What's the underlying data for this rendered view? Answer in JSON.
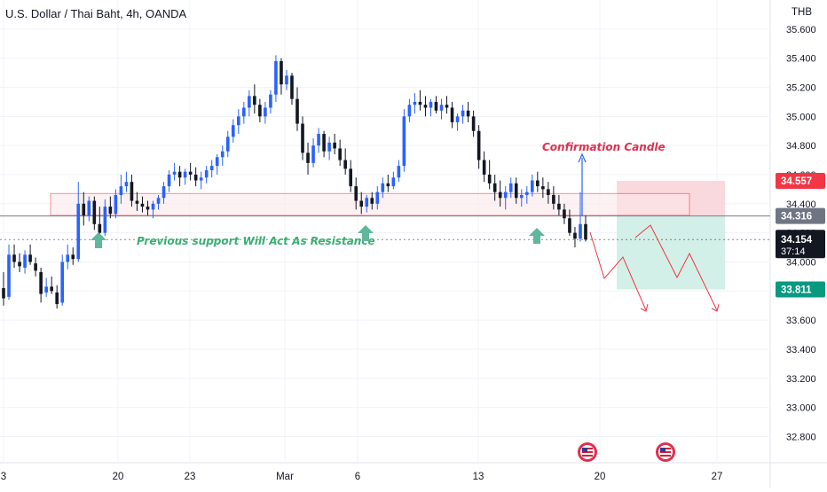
{
  "header": {
    "title": "U.S. Dollar / Thai Baht, 4h, OANDA"
  },
  "colors": {
    "up": "#2962ff",
    "down": "#131722",
    "zone_stroke": "#f23645",
    "zone_fill": "#fde8ea",
    "tp_fill": "#cdeee6",
    "sl_fill": "#f9d2d8",
    "green_arrow": "#5fb89b",
    "red_badge": "#f23645",
    "gray_badge": "#6f7583",
    "dark_badge": "#131722",
    "green_badge": "#089981"
  },
  "icons": [
    "us-flag-event-icon",
    "us-flag-event-icon"
  ],
  "chart_data": {
    "type": "candlestick",
    "title": "U.S. Dollar / Thai Baht, 4h, OANDA",
    "currency_label": "THB",
    "ylim": [
      32.62,
      35.8
    ],
    "y_ticks": [
      "35.600",
      "35.400",
      "35.200",
      "35.000",
      "34.800",
      "34.600",
      "34.400",
      "34.200",
      "34.000",
      "33.800",
      "33.600",
      "33.400",
      "33.200",
      "33.000",
      "32.800"
    ],
    "x_ticks": [
      "3",
      "20",
      "23",
      "Mar",
      "6",
      "13",
      "20",
      "27"
    ],
    "price_badges": {
      "stop_loss": "34.557",
      "entry": "34.316",
      "current": "34.154",
      "countdown": "37:14",
      "take_profit": "33.811"
    },
    "annotations": {
      "support_note": "Previous support Will Act As Resistance",
      "confirmation_note": "Confirmation Candle"
    },
    "zone": {
      "top": 34.47,
      "bottom": 34.32
    },
    "trade": {
      "stop_loss": 34.557,
      "entry": 34.316,
      "take_profit": 33.811
    },
    "candles": [
      [
        33.82,
        33.93,
        33.7,
        33.75
      ],
      [
        33.76,
        34.12,
        33.74,
        34.05
      ],
      [
        34.05,
        34.12,
        33.96,
        34.0
      ],
      [
        34.0,
        34.06,
        33.93,
        33.97
      ],
      [
        33.96,
        34.08,
        33.92,
        34.05
      ],
      [
        34.05,
        34.12,
        33.98,
        34.0
      ],
      [
        33.99,
        34.03,
        33.9,
        33.94
      ],
      [
        33.93,
        33.96,
        33.72,
        33.78
      ],
      [
        33.79,
        33.89,
        33.76,
        33.83
      ],
      [
        33.83,
        33.9,
        33.78,
        33.8
      ],
      [
        33.79,
        33.84,
        33.68,
        33.71
      ],
      [
        33.72,
        34.05,
        33.7,
        34.0
      ],
      [
        34.0,
        34.12,
        33.95,
        34.05
      ],
      [
        34.05,
        34.1,
        33.98,
        34.02
      ],
      [
        34.02,
        34.55,
        34.0,
        34.4
      ],
      [
        34.4,
        34.48,
        34.25,
        34.32
      ],
      [
        34.32,
        34.45,
        34.28,
        34.42
      ],
      [
        34.42,
        34.45,
        34.22,
        34.26
      ],
      [
        34.26,
        34.38,
        34.16,
        34.2
      ],
      [
        34.2,
        34.43,
        34.18,
        34.38
      ],
      [
        34.38,
        34.45,
        34.3,
        34.33
      ],
      [
        34.33,
        34.5,
        34.3,
        34.46
      ],
      [
        34.46,
        34.6,
        34.4,
        34.52
      ],
      [
        34.52,
        34.62,
        34.48,
        34.55
      ],
      [
        34.55,
        34.6,
        34.38,
        34.42
      ],
      [
        34.42,
        34.48,
        34.35,
        34.4
      ],
      [
        34.4,
        34.45,
        34.34,
        34.38
      ],
      [
        34.38,
        34.42,
        34.32,
        34.36
      ],
      [
        34.36,
        34.42,
        34.3,
        34.4
      ],
      [
        34.4,
        34.46,
        34.36,
        34.44
      ],
      [
        34.44,
        34.55,
        34.4,
        34.52
      ],
      [
        34.52,
        34.63,
        34.48,
        34.6
      ],
      [
        34.6,
        34.68,
        34.56,
        34.62
      ],
      [
        34.62,
        34.66,
        34.52,
        34.58
      ],
      [
        34.58,
        34.64,
        34.53,
        34.62
      ],
      [
        34.62,
        34.68,
        34.56,
        34.6
      ],
      [
        34.6,
        34.65,
        34.52,
        34.56
      ],
      [
        34.56,
        34.62,
        34.5,
        34.58
      ],
      [
        34.58,
        34.66,
        34.54,
        34.63
      ],
      [
        34.63,
        34.7,
        34.58,
        34.66
      ],
      [
        34.66,
        34.74,
        34.6,
        34.72
      ],
      [
        34.72,
        34.8,
        34.66,
        34.76
      ],
      [
        34.76,
        34.9,
        34.72,
        34.86
      ],
      [
        34.86,
        34.98,
        34.82,
        34.94
      ],
      [
        34.94,
        35.05,
        34.88,
        35.0
      ],
      [
        35.0,
        35.1,
        34.95,
        35.06
      ],
      [
        35.06,
        35.18,
        35.0,
        35.14
      ],
      [
        35.14,
        35.22,
        35.02,
        35.08
      ],
      [
        35.08,
        35.12,
        34.96,
        35.0
      ],
      [
        35.0,
        35.1,
        34.95,
        35.06
      ],
      [
        35.06,
        35.18,
        35.02,
        35.15
      ],
      [
        35.15,
        35.42,
        35.1,
        35.38
      ],
      [
        35.38,
        35.4,
        35.15,
        35.22
      ],
      [
        35.22,
        35.32,
        35.18,
        35.28
      ],
      [
        35.28,
        35.3,
        35.08,
        35.12
      ],
      [
        35.12,
        35.2,
        34.9,
        34.95
      ],
      [
        34.95,
        35.0,
        34.7,
        34.75
      ],
      [
        34.75,
        34.82,
        34.6,
        34.68
      ],
      [
        34.68,
        34.85,
        34.65,
        34.8
      ],
      [
        34.8,
        34.92,
        34.75,
        34.88
      ],
      [
        34.88,
        34.9,
        34.72,
        34.76
      ],
      [
        34.76,
        34.86,
        34.7,
        34.82
      ],
      [
        34.82,
        34.88,
        34.74,
        34.78
      ],
      [
        34.78,
        34.84,
        34.66,
        34.7
      ],
      [
        34.7,
        34.78,
        34.6,
        34.64
      ],
      [
        34.64,
        34.7,
        34.48,
        34.52
      ],
      [
        34.52,
        34.58,
        34.36,
        34.42
      ],
      [
        34.42,
        34.48,
        34.33,
        34.38
      ],
      [
        34.38,
        34.46,
        34.34,
        34.44
      ],
      [
        34.44,
        34.48,
        34.36,
        34.4
      ],
      [
        34.4,
        34.52,
        34.36,
        34.48
      ],
      [
        34.48,
        34.58,
        34.44,
        34.54
      ],
      [
        34.54,
        34.6,
        34.48,
        34.52
      ],
      [
        34.52,
        34.62,
        34.5,
        34.58
      ],
      [
        34.58,
        34.7,
        34.55,
        34.66
      ],
      [
        34.66,
        35.05,
        34.62,
        35.0
      ],
      [
        35.0,
        35.12,
        34.96,
        35.08
      ],
      [
        35.08,
        35.16,
        35.02,
        35.1
      ],
      [
        35.1,
        35.18,
        35.04,
        35.08
      ],
      [
        35.08,
        35.14,
        35.0,
        35.06
      ],
      [
        35.06,
        35.12,
        35.0,
        35.1
      ],
      [
        35.1,
        35.14,
        35.02,
        35.04
      ],
      [
        35.04,
        35.12,
        34.98,
        35.08
      ],
      [
        35.08,
        35.14,
        35.02,
        35.06
      ],
      [
        35.06,
        35.1,
        34.92,
        34.96
      ],
      [
        34.96,
        35.02,
        34.9,
        35.0
      ],
      [
        35.0,
        35.08,
        34.95,
        35.04
      ],
      [
        35.04,
        35.1,
        34.96,
        35.0
      ],
      [
        35.0,
        35.04,
        34.86,
        34.9
      ],
      [
        34.9,
        34.94,
        34.64,
        34.7
      ],
      [
        34.7,
        34.76,
        34.55,
        34.6
      ],
      [
        34.6,
        34.7,
        34.5,
        34.54
      ],
      [
        34.54,
        34.6,
        34.42,
        34.48
      ],
      [
        34.48,
        34.56,
        34.38,
        34.44
      ],
      [
        34.44,
        34.52,
        34.36,
        34.48
      ],
      [
        34.48,
        34.58,
        34.44,
        34.54
      ],
      [
        34.54,
        34.58,
        34.4,
        34.44
      ],
      [
        34.44,
        34.5,
        34.38,
        34.46
      ],
      [
        34.46,
        34.52,
        34.4,
        34.48
      ],
      [
        34.48,
        34.6,
        34.45,
        34.56
      ],
      [
        34.56,
        34.62,
        34.48,
        34.52
      ],
      [
        34.52,
        34.58,
        34.44,
        34.5
      ],
      [
        34.5,
        34.55,
        34.4,
        34.46
      ],
      [
        34.46,
        34.52,
        34.36,
        34.4
      ],
      [
        34.4,
        34.46,
        34.32,
        34.36
      ],
      [
        34.36,
        34.4,
        34.26,
        34.3
      ],
      [
        34.3,
        34.36,
        34.18,
        34.2
      ],
      [
        34.2,
        34.24,
        34.1,
        34.16
      ],
      [
        34.16,
        34.48,
        34.14,
        34.26
      ],
      [
        34.26,
        34.32,
        34.14,
        34.154
      ]
    ]
  }
}
